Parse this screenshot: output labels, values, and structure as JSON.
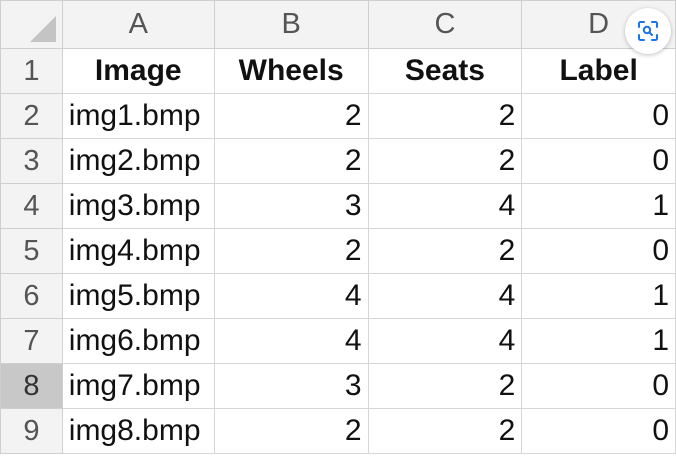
{
  "columns": [
    "A",
    "B",
    "C",
    "D"
  ],
  "header_row": {
    "row_number": "1",
    "cells": [
      "Image",
      "Wheels",
      "Seats",
      "Label"
    ]
  },
  "rows": [
    {
      "row_number": "2",
      "cells": [
        "img1.bmp",
        "2",
        "2",
        "0"
      ]
    },
    {
      "row_number": "3",
      "cells": [
        "img2.bmp",
        "2",
        "2",
        "0"
      ]
    },
    {
      "row_number": "4",
      "cells": [
        "img3.bmp",
        "3",
        "4",
        "1"
      ]
    },
    {
      "row_number": "5",
      "cells": [
        "img4.bmp",
        "2",
        "2",
        "0"
      ]
    },
    {
      "row_number": "6",
      "cells": [
        "img5.bmp",
        "4",
        "4",
        "1"
      ]
    },
    {
      "row_number": "7",
      "cells": [
        "img6.bmp",
        "4",
        "4",
        "1"
      ]
    },
    {
      "row_number": "8",
      "cells": [
        "img7.bmp",
        "3",
        "2",
        "0"
      ]
    },
    {
      "row_number": "9",
      "cells": [
        "img8.bmp",
        "2",
        "2",
        "0"
      ]
    }
  ],
  "selected_row": "8",
  "overlay": {
    "icon": "visual-search-icon"
  },
  "colors": {
    "header_bg": "#f3f3f3",
    "selected_row_header_bg": "#c8c8c8",
    "gridline": "#d6d6d6",
    "icon_blue": "#1a73e8"
  }
}
